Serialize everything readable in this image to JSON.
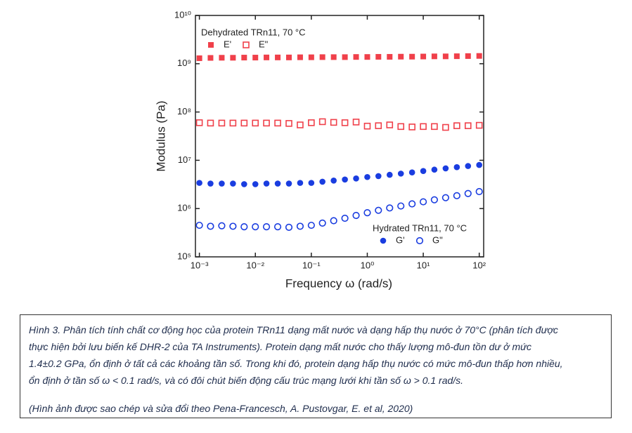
{
  "chart_data": {
    "type": "scatter",
    "x_label": "Frequency ω (rad/s)",
    "y_label": "Modulus (Pa)",
    "xscale": "log",
    "yscale": "log",
    "xlim": [
      0.00085,
      120
    ],
    "ylim": [
      100000,
      10000000000
    ],
    "xticks": [
      {
        "value": 0.001,
        "label": "10⁻³"
      },
      {
        "value": 0.01,
        "label": "10⁻²"
      },
      {
        "value": 0.1,
        "label": "10⁻¹"
      },
      {
        "value": 1,
        "label": "10⁰"
      },
      {
        "value": 10,
        "label": "10¹"
      },
      {
        "value": 100,
        "label": "10²"
      }
    ],
    "yticks": [
      {
        "value": 100000,
        "label": "10⁵"
      },
      {
        "value": 1000000,
        "label": "10⁶"
      },
      {
        "value": 10000000,
        "label": "10⁷"
      },
      {
        "value": 100000000,
        "label": "10⁸"
      },
      {
        "value": 1000000000,
        "label": "10⁹"
      },
      {
        "value": 10000000000,
        "label": "10¹⁰"
      }
    ],
    "legend_groups": [
      "Dehydrated TRn11, 70 °C",
      "Hydrated TRn11, 70 °C"
    ],
    "x": [
      0.001,
      0.00158,
      0.00251,
      0.00398,
      0.00631,
      0.01,
      0.0158,
      0.0251,
      0.0398,
      0.0631,
      0.1,
      0.158,
      0.251,
      0.398,
      0.631,
      1,
      1.58,
      2.51,
      3.98,
      6.31,
      10,
      15.8,
      25.1,
      39.8,
      63.1,
      100
    ],
    "series": [
      {
        "name": "E'",
        "color": "#f0404a",
        "marker": "square",
        "filled": true,
        "values": [
          1300000000,
          1320000000,
          1330000000,
          1330000000,
          1340000000,
          1340000000,
          1350000000,
          1350000000,
          1350000000,
          1360000000,
          1360000000,
          1370000000,
          1370000000,
          1370000000,
          1380000000,
          1380000000,
          1390000000,
          1390000000,
          1400000000,
          1400000000,
          1410000000,
          1420000000,
          1420000000,
          1430000000,
          1440000000,
          1450000000
        ]
      },
      {
        "name": "E\"",
        "color": "#f0404a",
        "marker": "square",
        "filled": false,
        "values": [
          60000000,
          59000000,
          59000000,
          59000000,
          59000000,
          59000000,
          59000000,
          59000000,
          58000000,
          54000000,
          60000000,
          63000000,
          61000000,
          60000000,
          62000000,
          51000000,
          52000000,
          54000000,
          50000000,
          49000000,
          50000000,
          50000000,
          48000000,
          52000000,
          52000000,
          53000000
        ]
      },
      {
        "name": "G'",
        "color": "#1a3de0",
        "marker": "circle",
        "filled": true,
        "values": [
          3400000,
          3300000,
          3300000,
          3300000,
          3200000,
          3200000,
          3300000,
          3300000,
          3300000,
          3400000,
          3400000,
          3600000,
          3800000,
          4000000,
          4200000,
          4500000,
          4700000,
          5000000,
          5300000,
          5600000,
          6000000,
          6400000,
          6800000,
          7200000,
          7600000,
          8000000
        ]
      },
      {
        "name": "G\"",
        "color": "#1a3de0",
        "marker": "circle",
        "filled": false,
        "values": [
          450000,
          430000,
          440000,
          430000,
          420000,
          420000,
          420000,
          420000,
          410000,
          430000,
          450000,
          500000,
          560000,
          630000,
          720000,
          820000,
          920000,
          1030000,
          1130000,
          1250000,
          1380000,
          1520000,
          1680000,
          1850000,
          2050000,
          2250000
        ]
      }
    ]
  },
  "caption": {
    "lines": [
      "Hình 3. Phân tích tính chất cơ động học của protein TRn11 dạng mất nước  và dạng hấp thụ nước ở 70°C (phân tích được",
      "thực hiện bởi lưu biến kế DHR-2 của TA Instruments). Protein dạng mất nước cho thấy lượng mô-đun tồn dư ở mức",
      "1.4±0.2 GPa, ổn định ở tất cả các khoảng tần số. Trong khi đó, protein dạng hấp thụ nước có mức mô-đun thấp hơn nhiều,",
      "ổn định ở tần số ω < 0.1 rad/s, và có đôi chút biến động cấu trúc mạng lưới khi tần số ω > 0.1 rad/s."
    ],
    "source": "(Hình ảnh được sao chép và sửa đổi theo Pena-Francesch, A. Pustovgar, E. et al, 2020)"
  }
}
